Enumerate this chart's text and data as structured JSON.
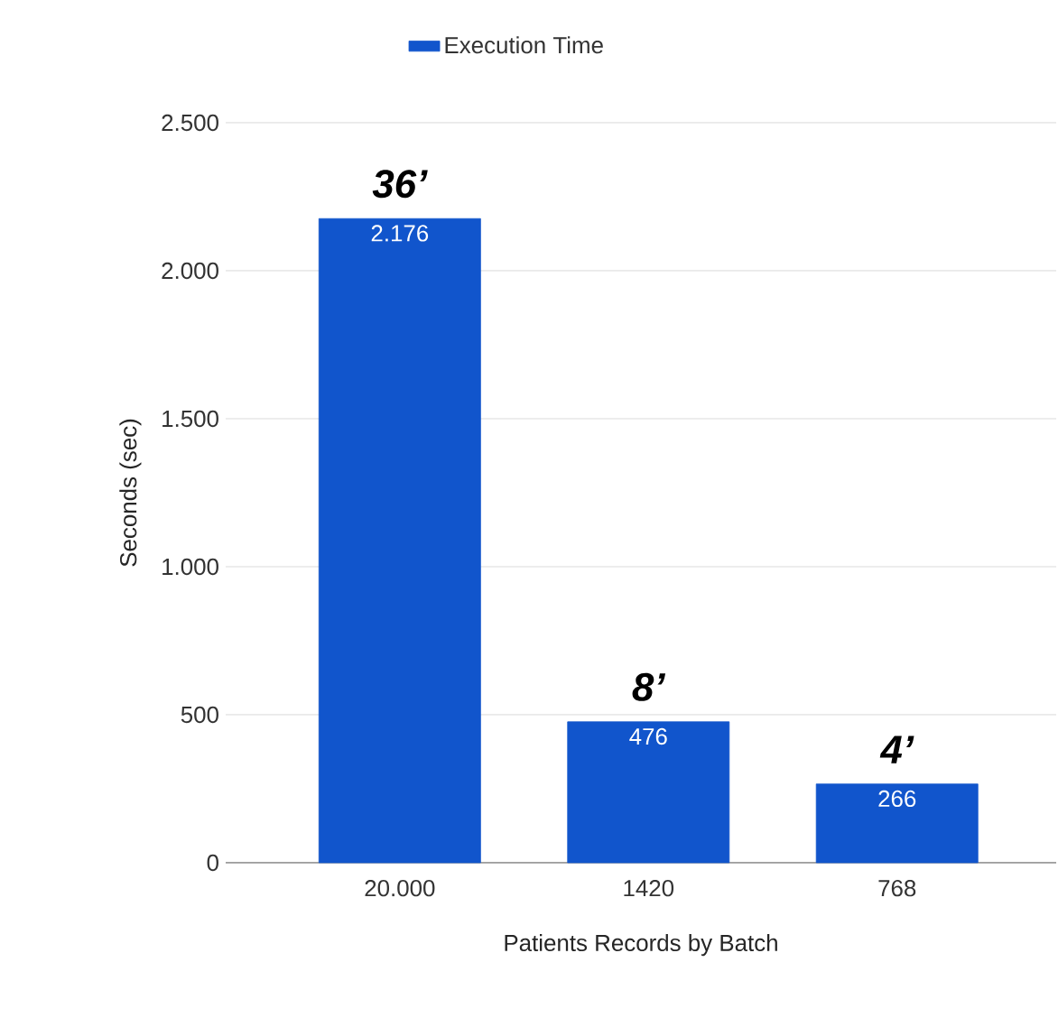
{
  "chart_data": {
    "type": "bar",
    "xlabel": "Patients Records by Batch",
    "ylabel": "Seconds (sec)",
    "categories": [
      "20.000",
      "1420",
      "768"
    ],
    "series": [
      {
        "name": "Execution Time",
        "color": "#1155cc",
        "values": [
          2176,
          476,
          266
        ],
        "value_labels": [
          "2.176",
          "476",
          "266"
        ]
      }
    ],
    "ylim": [
      0,
      2500
    ],
    "yticks": [
      0,
      500,
      {
        "value": 1000,
        "label": "1.000"
      },
      {
        "value": 1500,
        "label": "1.500"
      },
      {
        "value": 2000,
        "label": "2.000"
      },
      {
        "value": 2500,
        "label": "2.500"
      }
    ],
    "annotations": [
      "36’",
      "8’",
      "4’"
    ],
    "grid": "y",
    "legend": "top"
  }
}
